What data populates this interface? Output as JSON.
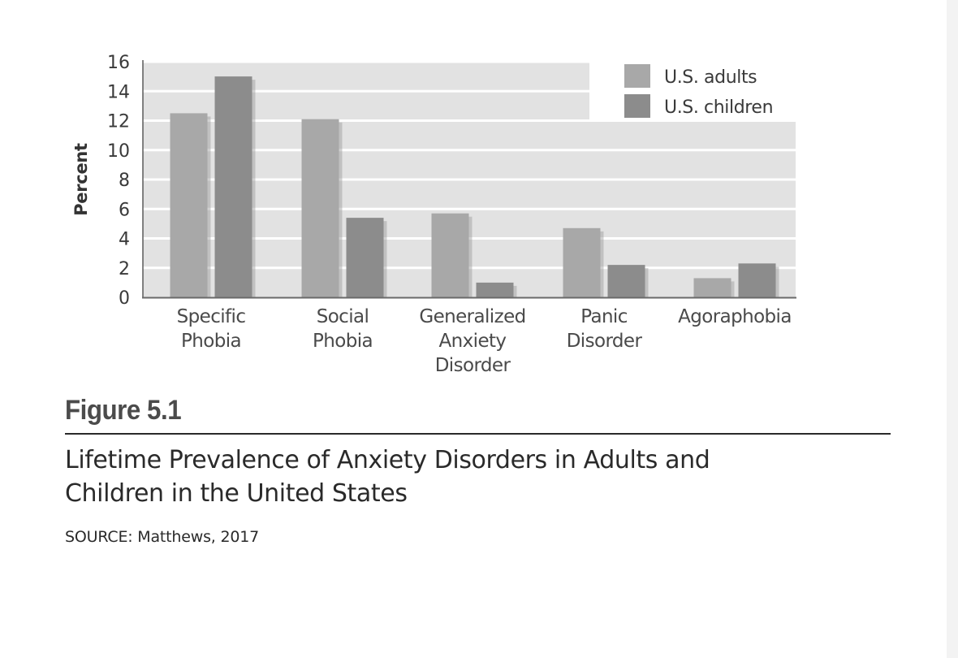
{
  "chart_data": {
    "type": "bar",
    "ylabel": "Percent",
    "xlabel": "",
    "ylim": [
      0,
      16
    ],
    "yticks": [
      0,
      2,
      4,
      6,
      8,
      10,
      12,
      14,
      16
    ],
    "grid": true,
    "legend_position": "top-right",
    "categories": [
      [
        "Specific",
        "Phobia"
      ],
      [
        "Social",
        "Phobia"
      ],
      [
        "Generalized",
        "Anxiety",
        "Disorder"
      ],
      [
        "Panic",
        "Disorder"
      ],
      [
        "Agoraphobia"
      ]
    ],
    "series": [
      {
        "name": "U.S. adults",
        "color": "#a8a8a8",
        "values": [
          12.5,
          12.1,
          5.7,
          4.7,
          1.3
        ]
      },
      {
        "name": "U.S. children",
        "color": "#8c8c8c",
        "values": [
          15.0,
          5.4,
          1.0,
          2.2,
          2.3
        ]
      }
    ]
  },
  "figure": {
    "label": "Figure 5.1",
    "title_line1": "Lifetime Prevalence of Anxiety Disorders in Adults and",
    "title_line2": "Children in the United States",
    "source": "SOURCE: Matthews, 2017"
  }
}
